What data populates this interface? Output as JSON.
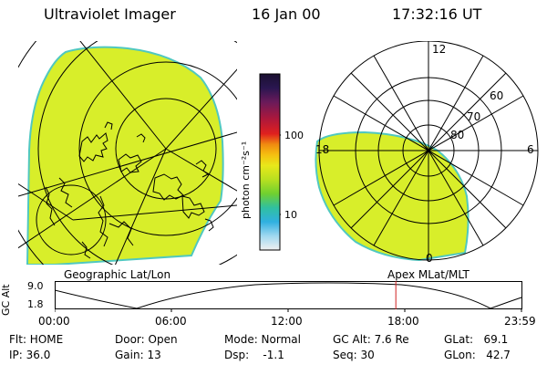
{
  "header": {
    "instrument": "Ultraviolet Imager",
    "date": "16 Jan 00",
    "time": "17:32:16 UT"
  },
  "colorbar": {
    "unit_label": "photon cm⁻²s⁻¹",
    "ticks": [
      "100",
      "10"
    ],
    "colors": [
      "#1a1030",
      "#2a1650",
      "#6a1a5a",
      "#b0183a",
      "#e0201e",
      "#f08a10",
      "#f5c010",
      "#e8e81a",
      "#b8e020",
      "#70d030",
      "#30c0a0",
      "#30b0e0",
      "#a0d8f0",
      "#f0f0f0"
    ]
  },
  "left_panel": {
    "caption": "Geographic Lat/Lon",
    "fill_color": "#d8ee2a"
  },
  "right_panel": {
    "caption": "Apex MLat/MLT",
    "mlt_labels": {
      "top": "12",
      "left": "18",
      "right": "6",
      "bottom": "0"
    },
    "lat_labels": [
      "60",
      "70",
      "80"
    ],
    "fill_color": "#d8ee2a"
  },
  "altitude_plot": {
    "ylabel": "GC Alt",
    "yticks": [
      "9.0",
      "1.8"
    ],
    "xticks": [
      "00:00",
      "06:00",
      "12:00",
      "18:00",
      "23:59"
    ],
    "current_time_hours": 17.54,
    "marker_color": "#d02020"
  },
  "status": {
    "flt": "Flt: HOME",
    "ip": "IP: 36.0",
    "door": "Door: Open",
    "gain": "Gain: 13",
    "mode": "Mode: Normal",
    "dsp": "Dsp:    -1.1",
    "gcalt": "GC Alt: 7.6 Re",
    "seq": "Seq: 30",
    "glat": "GLat:   69.1",
    "glon": "GLon:   42.7"
  }
}
